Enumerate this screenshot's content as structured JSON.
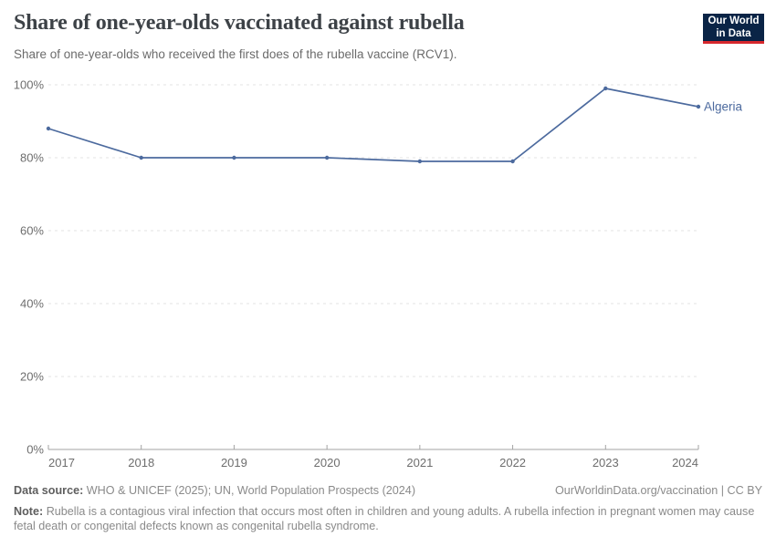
{
  "header": {
    "logo": {
      "line1": "Our World",
      "line2": "in Data"
    }
  },
  "brand": {
    "logo_bg": "#0a2446",
    "logo_red": "#d7282d"
  },
  "chart_data": {
    "type": "line",
    "title": "Share of one-year-olds vaccinated against rubella",
    "subtitle": "Share of one-year-olds who received the first does of the rubella vaccine (RCV1).",
    "x": [
      2017,
      2018,
      2019,
      2020,
      2021,
      2022,
      2023,
      2024
    ],
    "series": [
      {
        "name": "Algeria",
        "values": [
          88,
          80,
          80,
          80,
          79,
          79,
          99,
          94
        ],
        "color": "#4c6a9e"
      }
    ],
    "xlim": [
      2017,
      2024
    ],
    "ylim": [
      0,
      100
    ],
    "yticks": [
      {
        "value": 0,
        "label": "0%"
      },
      {
        "value": 20,
        "label": "20%"
      },
      {
        "value": 40,
        "label": "40%"
      },
      {
        "value": 60,
        "label": "60%"
      },
      {
        "value": 80,
        "label": "80%"
      },
      {
        "value": 100,
        "label": "100%"
      }
    ],
    "xticks": [
      "2017",
      "2018",
      "2019",
      "2020",
      "2021",
      "2022",
      "2023",
      "2024"
    ],
    "grid": "horizontal-dashed",
    "legend": "series-end-label",
    "colors": {
      "grid": "#e3e3e3",
      "axis": "#a3a3a3",
      "tick_text": "#6e6e6e"
    }
  },
  "footer": {
    "source_label": "Data source:",
    "source_text": "WHO & UNICEF (2025); UN, World Population Prospects (2024)",
    "citation": "OurWorldinData.org/vaccination | CC BY",
    "note_label": "Note:",
    "note_text": "Rubella is a contagious viral infection that occurs most often in children and young adults. A rubella infection in pregnant women may cause fetal death or congenital defects known as congenital rubella syndrome."
  }
}
